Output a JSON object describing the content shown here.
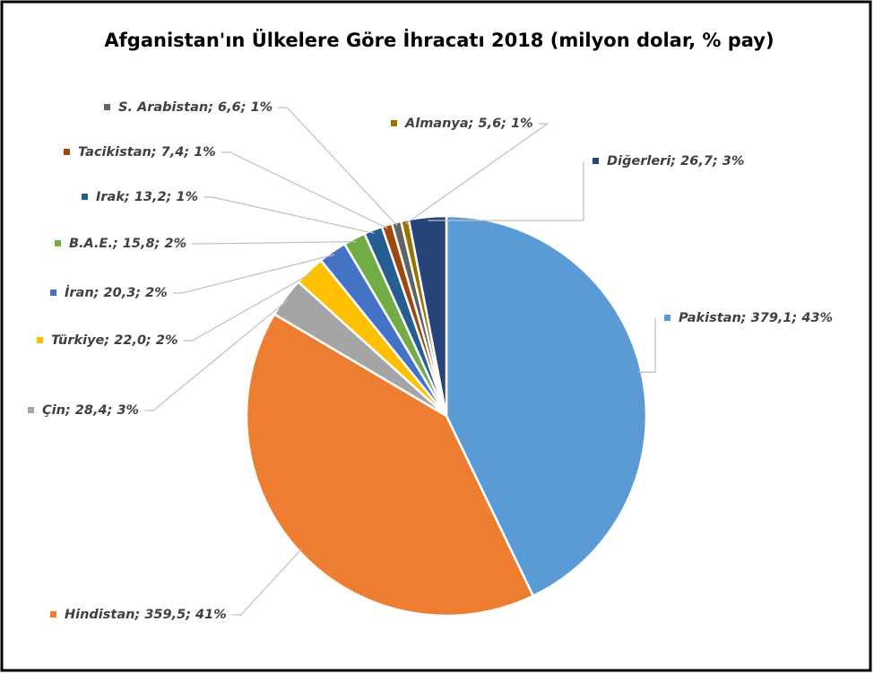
{
  "chart_data": {
    "type": "pie",
    "title": "Afganistan'ın Ülkelere Göre İhracatı 2018 (milyon dolar, % pay)",
    "categories": [
      "Pakistan",
      "Hindistan",
      "Çin",
      "Türkiye",
      "İran",
      "B.A.E.",
      "Irak",
      "Tacikistan",
      "S. Arabistan",
      "Almanya",
      "Diğerleri"
    ],
    "values": [
      379.1,
      359.5,
      28.4,
      22.0,
      20.3,
      15.8,
      13.2,
      7.4,
      6.6,
      5.6,
      26.7
    ],
    "value_labels": [
      "379,1",
      "359,5",
      "28,4",
      "22,0",
      "20,3",
      "15,8",
      "13,2",
      "7,4",
      "6,6",
      "5,6",
      "26,7"
    ],
    "percent_labels": [
      "43%",
      "41%",
      "3%",
      "2%",
      "2%",
      "2%",
      "1%",
      "1%",
      "1%",
      "1%",
      "3%"
    ],
    "label_separator": "; ",
    "colors": [
      "#5b9bd5",
      "#ed7d31",
      "#a5a5a5",
      "#ffc000",
      "#4472c4",
      "#70ad47",
      "#255e91",
      "#9e480e",
      "#636363",
      "#997300",
      "#264478"
    ]
  }
}
